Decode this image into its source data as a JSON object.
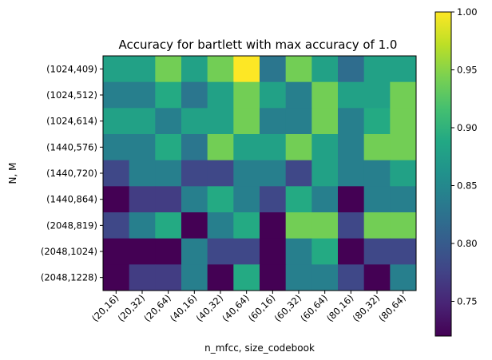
{
  "chart_data": {
    "type": "heatmap",
    "title": "Accuracy for bartlett with max accuracy of 1.0",
    "xlabel": "n_mfcc, size_codebook",
    "ylabel": "N, M",
    "x_categories": [
      "(20,16)",
      "(20,32)",
      "(20,64)",
      "(40,16)",
      "(40,32)",
      "(40,64)",
      "(60,16)",
      "(60,32)",
      "(60,64)",
      "(80,16)",
      "(80,32)",
      "(80,64)"
    ],
    "y_categories": [
      "(1024,409)",
      "(1024,512)",
      "(1024,614)",
      "(1440,576)",
      "(1440,720)",
      "(1440,864)",
      "(2048,819)",
      "(2048,1024)",
      "(2048,1228)"
    ],
    "values": [
      [
        0.88,
        0.88,
        0.94,
        0.88,
        0.94,
        1.0,
        0.83,
        0.94,
        0.88,
        0.82,
        0.88,
        0.88
      ],
      [
        0.84,
        0.84,
        0.89,
        0.83,
        0.88,
        0.94,
        0.88,
        0.84,
        0.94,
        0.88,
        0.88,
        0.94
      ],
      [
        0.88,
        0.88,
        0.84,
        0.88,
        0.88,
        0.94,
        0.84,
        0.84,
        0.94,
        0.84,
        0.89,
        0.94
      ],
      [
        0.84,
        0.84,
        0.89,
        0.83,
        0.94,
        0.88,
        0.88,
        0.94,
        0.88,
        0.84,
        0.94,
        0.94
      ],
      [
        0.78,
        0.84,
        0.84,
        0.78,
        0.78,
        0.84,
        0.84,
        0.78,
        0.88,
        0.84,
        0.84,
        0.88
      ],
      [
        0.72,
        0.77,
        0.77,
        0.84,
        0.89,
        0.84,
        0.78,
        0.89,
        0.84,
        0.72,
        0.84,
        0.84
      ],
      [
        0.78,
        0.84,
        0.89,
        0.72,
        0.84,
        0.89,
        0.72,
        0.94,
        0.94,
        0.78,
        0.94,
        0.94
      ],
      [
        0.72,
        0.72,
        0.72,
        0.84,
        0.78,
        0.78,
        0.72,
        0.84,
        0.89,
        0.72,
        0.78,
        0.78
      ],
      [
        0.72,
        0.77,
        0.77,
        0.84,
        0.72,
        0.89,
        0.72,
        0.84,
        0.84,
        0.78,
        0.72,
        0.84
      ]
    ],
    "vmin": 0.72,
    "vmax": 1.0,
    "colormap": "viridis",
    "colorbar_ticks": [
      "0.75",
      "0.80",
      "0.85",
      "0.90",
      "0.95",
      "1.00"
    ],
    "grid": false
  }
}
